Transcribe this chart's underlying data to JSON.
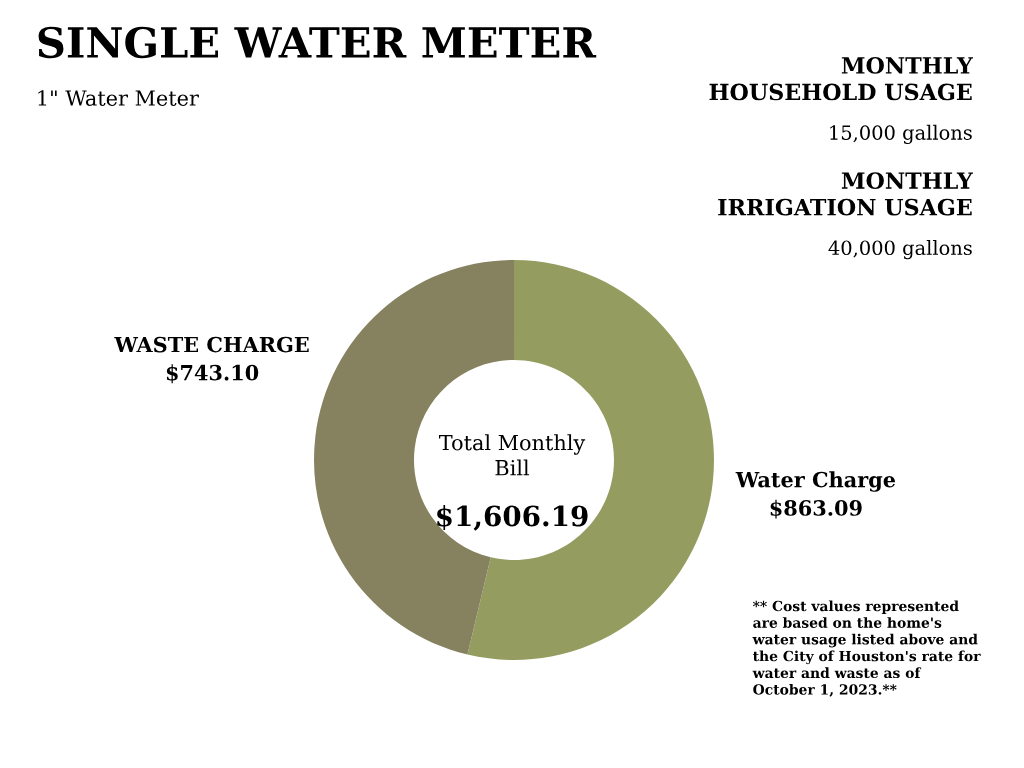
{
  "chart_data": {
    "type": "donut",
    "title": "SINGLE WATER METER",
    "subtitle": "1\" Water Meter",
    "categories": [
      "Water Charge",
      "WASTE CHARGE"
    ],
    "values": [
      863.09,
      743.1
    ],
    "value_labels": [
      "$863.09",
      "$743.10"
    ],
    "colors": [
      "#949c5f",
      "#868260"
    ],
    "annotations": [
      "MONTHLY\nHOUSEHOLD USAGE",
      "15,000 gallons",
      "MONTHLY\nIRRIGATION USAGE",
      "40,000 gallons",
      "Total Monthly\nBill",
      "$1,606.19",
      "** Cost values represented\nare based on the home's\nwater usage listed above and\nthe City of Houston's rate for\nwater and waste as of\nOctober 1, 2023.**"
    ]
  }
}
